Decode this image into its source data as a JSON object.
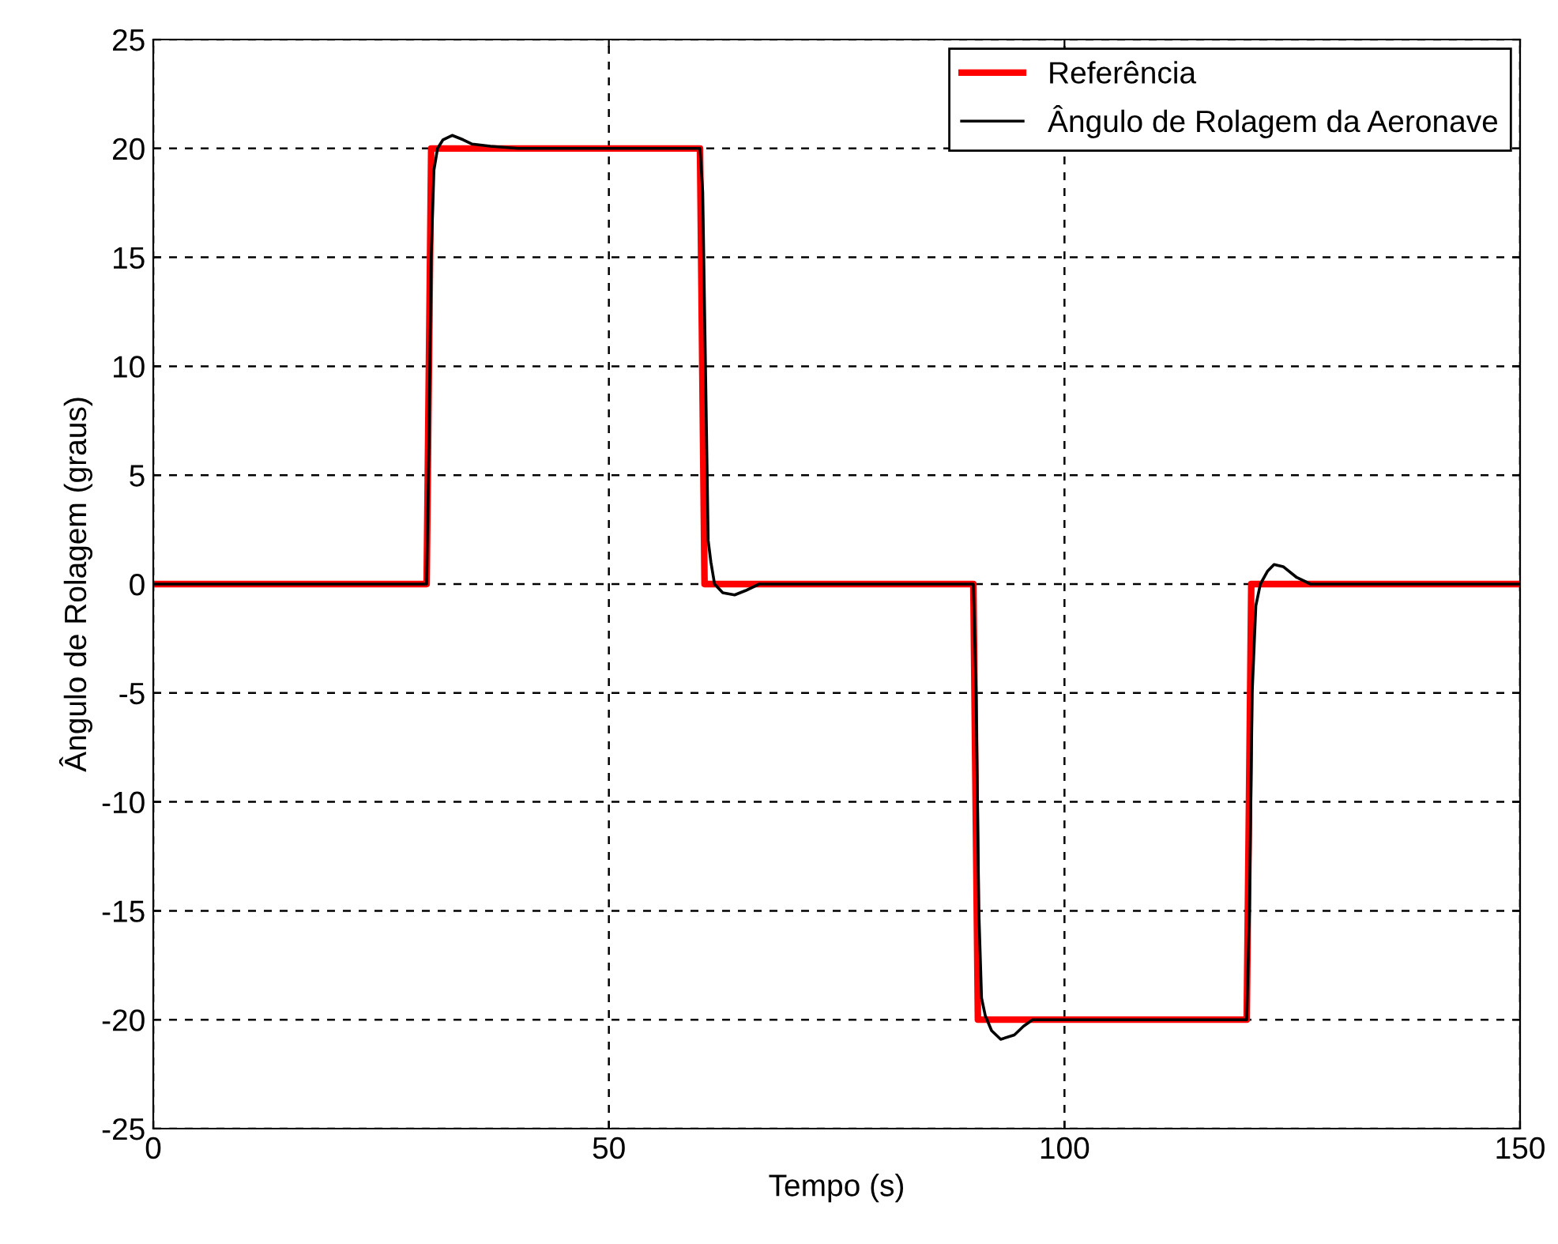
{
  "chart_data": {
    "type": "line",
    "xlabel": "Tempo (s)",
    "ylabel": "Ângulo de Rolagem (graus)",
    "xlim": [
      0,
      150
    ],
    "xticks": [
      0,
      50,
      100,
      150
    ],
    "ylim": [
      -25,
      25
    ],
    "yticks": [
      -25,
      -20,
      -15,
      -10,
      -5,
      0,
      5,
      10,
      15,
      20,
      25
    ],
    "grid": true,
    "legend": "top right",
    "series": [
      {
        "name": "Referência",
        "color": "#ff0000",
        "x": [
          0,
          30,
          30.5,
          60,
          60.5,
          90,
          90.5,
          120,
          120.5,
          150
        ],
        "values": [
          0,
          0,
          20,
          20,
          0,
          0,
          -20,
          -20,
          0,
          0
        ]
      },
      {
        "name": "Ângulo de Rolagem da Aeronave",
        "color": "#000000",
        "x": [
          0,
          30,
          30.2,
          30.5,
          30.8,
          31.2,
          31.8,
          32.8,
          34,
          35,
          37,
          40,
          60,
          60.3,
          60.6,
          60.9,
          61.2,
          61.6,
          62.5,
          63.8,
          65,
          66.5,
          90,
          90.3,
          90.6,
          90.9,
          91.3,
          92,
          93,
          94.5,
          95.5,
          96.5,
          120,
          120.3,
          120.6,
          121,
          121.5,
          122.3,
          123,
          124,
          125.5,
          127,
          150
        ],
        "values": [
          0,
          0,
          5,
          15,
          19,
          20,
          20.4,
          20.6,
          20.4,
          20.2,
          20.1,
          20,
          20,
          18,
          10,
          2,
          1,
          0,
          -0.4,
          -0.5,
          -0.3,
          0,
          0,
          -5,
          -15,
          -19,
          -19.8,
          -20.5,
          -20.9,
          -20.7,
          -20.3,
          -20,
          -20,
          -15,
          -5,
          -1,
          0,
          0.6,
          0.9,
          0.8,
          0.3,
          0,
          0
        ]
      }
    ]
  }
}
